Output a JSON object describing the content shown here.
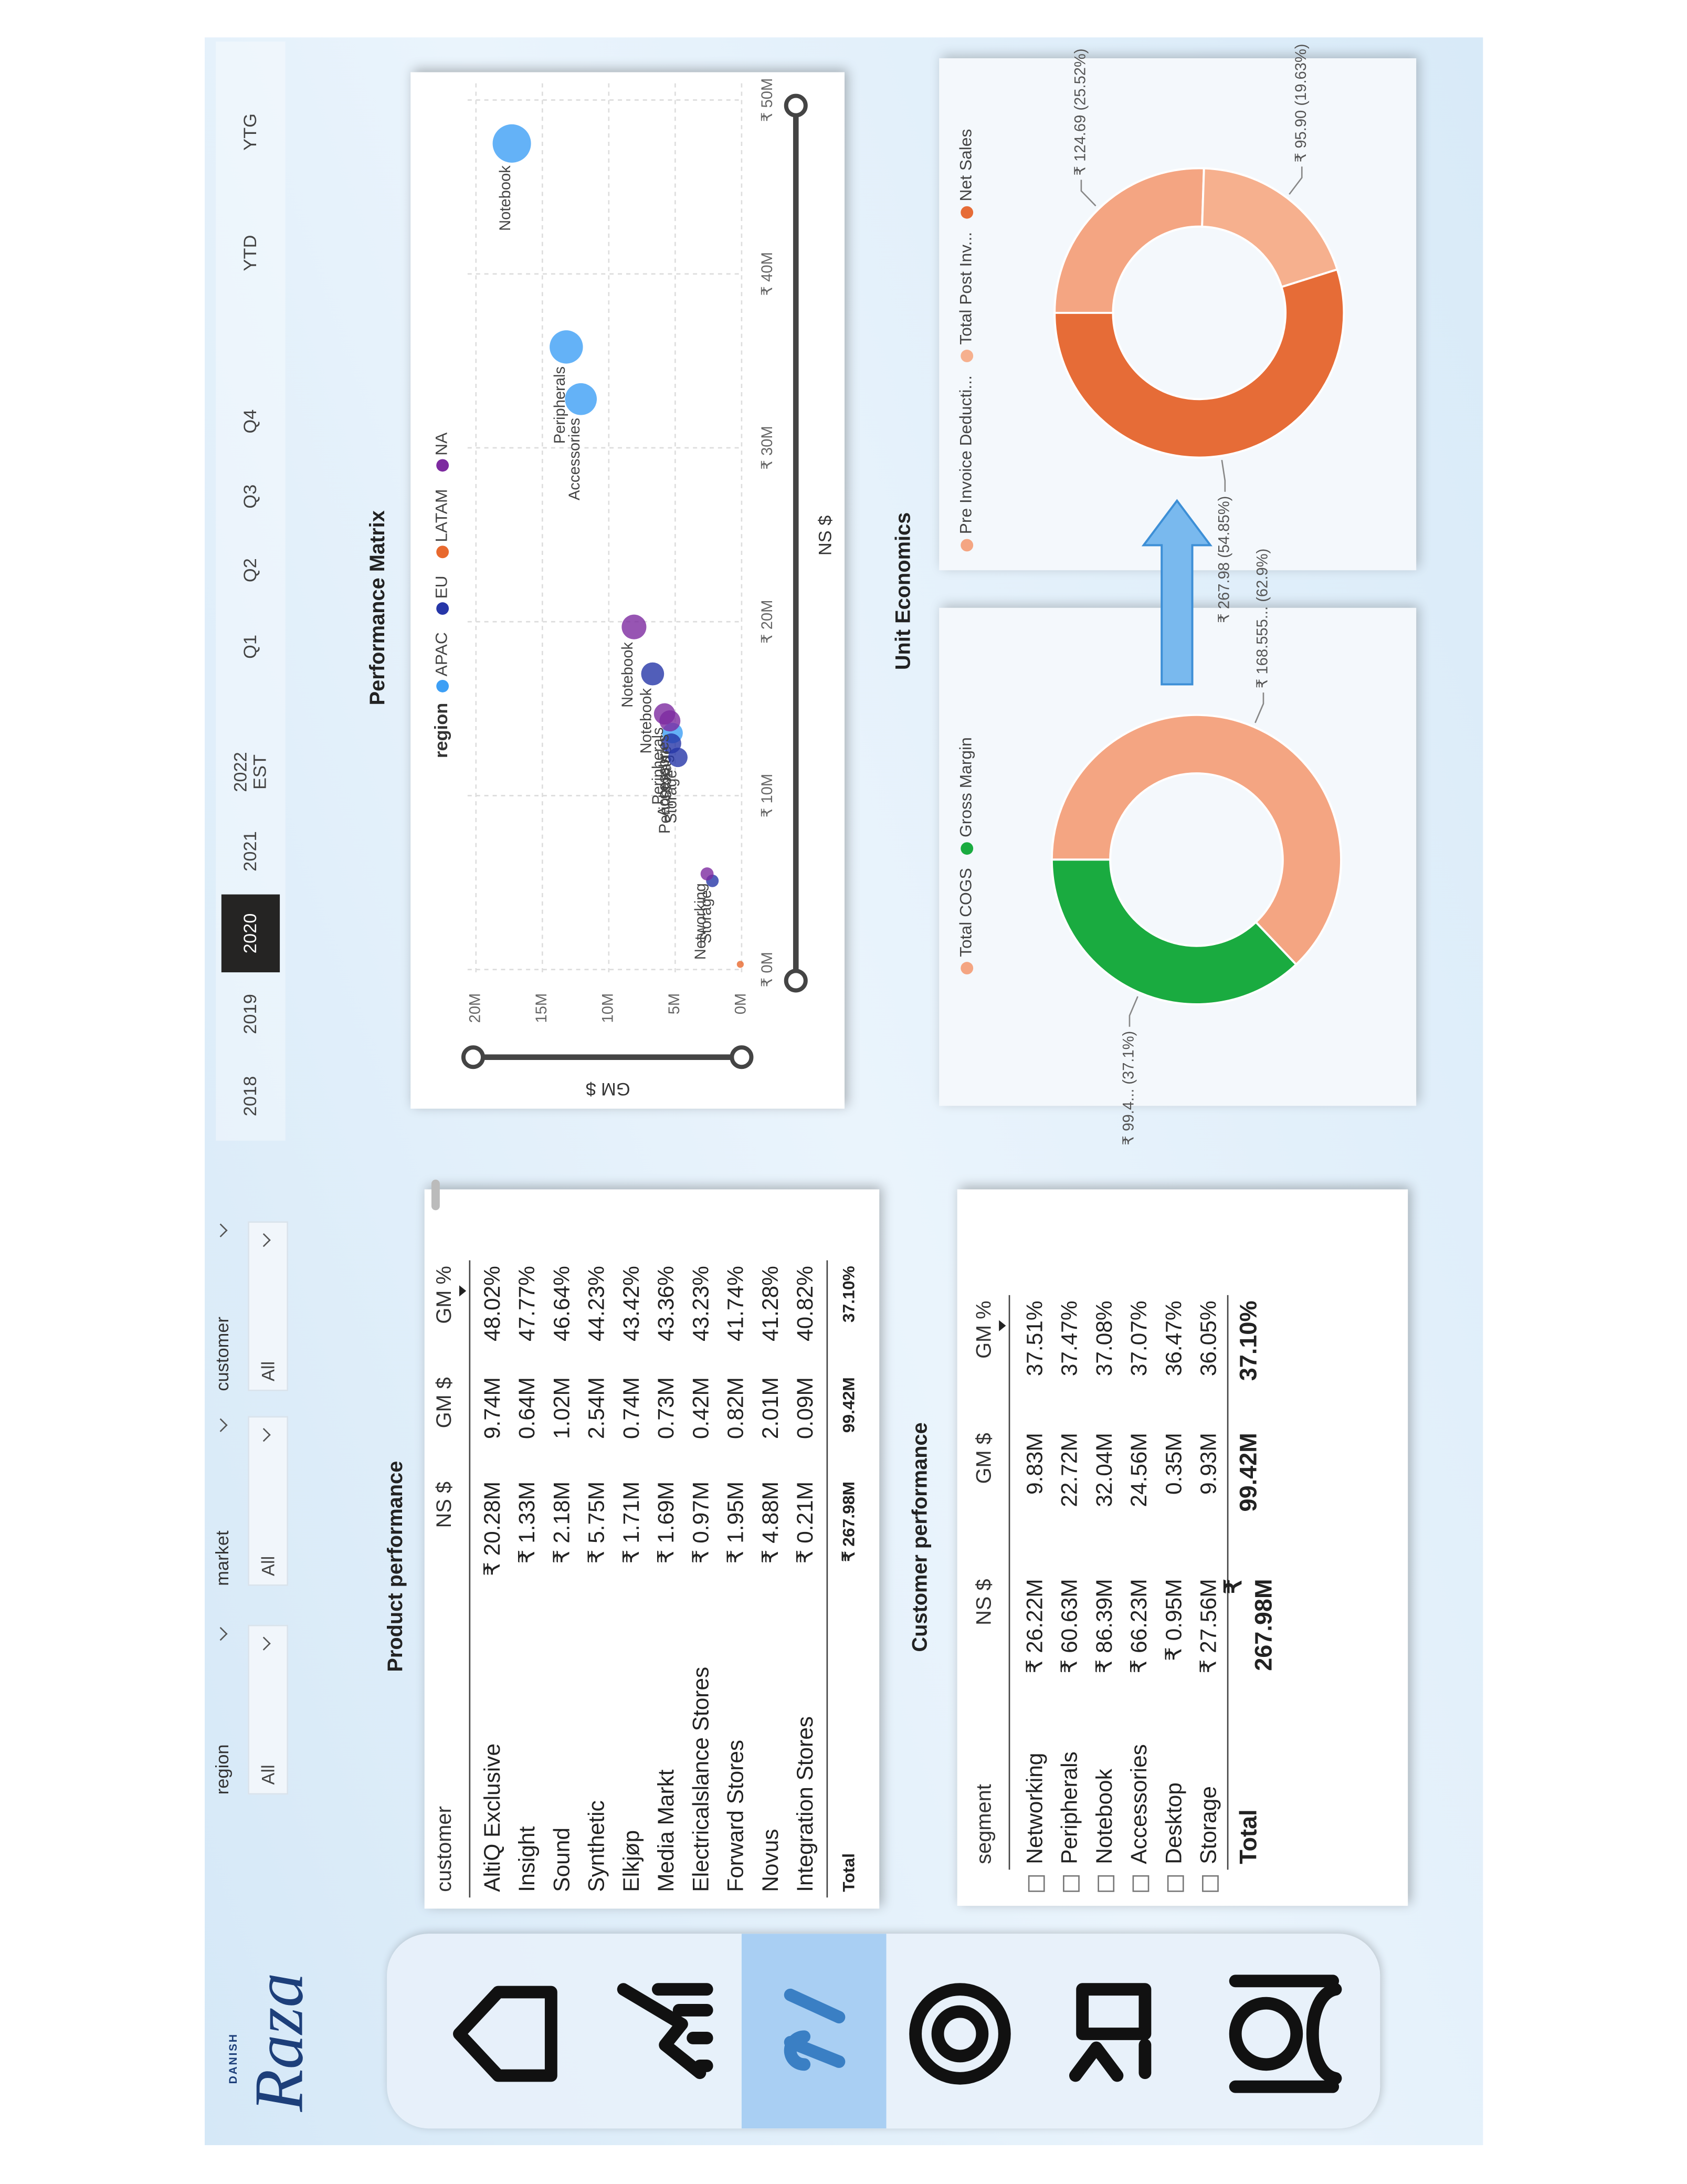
{
  "logo": {
    "small": "DANISH",
    "name": "Raza"
  },
  "filters": [
    {
      "label": "region",
      "value": "All"
    },
    {
      "label": "market",
      "value": "All"
    },
    {
      "label": "customer",
      "value": "All"
    }
  ],
  "periods": {
    "options": [
      "2018",
      "2019",
      "2020",
      "2021",
      "2022 EST",
      "Q1",
      "Q2",
      "Q3",
      "Q4",
      "YTD",
      "YTG"
    ],
    "selected_index": 2
  },
  "product_table": {
    "title": "Product performance",
    "columns": [
      "customer",
      "NS $",
      "GM $",
      "GM %"
    ],
    "rows": [
      [
        "AltiQ Exclusive",
        "₹ 20.28M",
        "9.74M",
        "48.02%"
      ],
      [
        "Insight",
        "₹ 1.33M",
        "0.64M",
        "47.77%"
      ],
      [
        "Sound",
        "₹ 2.18M",
        "1.02M",
        "46.64%"
      ],
      [
        "Synthetic",
        "₹ 5.75M",
        "2.54M",
        "44.23%"
      ],
      [
        "Elkjøp",
        "₹ 1.71M",
        "0.74M",
        "43.42%"
      ],
      [
        "Media Markt",
        "₹ 1.69M",
        "0.73M",
        "43.36%"
      ],
      [
        "Electricalslance Stores",
        "₹ 0.97M",
        "0.42M",
        "43.23%"
      ],
      [
        "Forward Stores",
        "₹ 1.95M",
        "0.82M",
        "41.74%"
      ],
      [
        "Novus",
        "₹ 4.88M",
        "2.01M",
        "41.28%"
      ],
      [
        "Integration Stores",
        "₹ 0.21M",
        "0.09M",
        "40.82%"
      ]
    ],
    "total": [
      "Total",
      "₹ 267.98M",
      "99.42M",
      "37.10%"
    ]
  },
  "customer_table": {
    "title": "Customer performance",
    "columns": [
      "segment",
      "NS $",
      "GM $",
      "GM %"
    ],
    "rows": [
      [
        "Networking",
        "₹ 26.22M",
        "9.83M",
        "37.51%"
      ],
      [
        "Peripherals",
        "₹ 60.63M",
        "22.72M",
        "37.47%"
      ],
      [
        "Notebook",
        "₹ 86.39M",
        "32.04M",
        "37.08%"
      ],
      [
        "Accessories",
        "₹ 66.23M",
        "24.56M",
        "37.07%"
      ],
      [
        "Desktop",
        "₹ 0.95M",
        "0.35M",
        "36.47%"
      ],
      [
        "Storage",
        "₹ 27.56M",
        "9.93M",
        "36.05%"
      ]
    ],
    "total": [
      "Total",
      "₹ 267.98M",
      "99.42M",
      "37.10%"
    ]
  },
  "unit_economics_title": "Unit Economics",
  "chart_data": [
    {
      "type": "scatter",
      "title": "Performance Matrix",
      "legend_title": "region",
      "x_label": "NS $",
      "y_label": "GM $",
      "grid": true,
      "xlim": [
        0,
        50
      ],
      "xticks": [
        {
          "value": 0,
          "label": "₹ 0M"
        },
        {
          "value": 10,
          "label": "₹ 10M"
        },
        {
          "value": 20,
          "label": "₹ 20M"
        },
        {
          "value": 30,
          "label": "₹ 30M"
        },
        {
          "value": 40,
          "label": "₹ 40M"
        },
        {
          "value": 50,
          "label": "₹ 50M"
        }
      ],
      "ylim": [
        0,
        20
      ],
      "yticks": [
        {
          "value": 0,
          "label": "0M"
        },
        {
          "value": 5,
          "label": "5M"
        },
        {
          "value": 10,
          "label": "10M"
        },
        {
          "value": 15,
          "label": "15M"
        },
        {
          "value": 20,
          "label": "20M"
        }
      ],
      "series": [
        {
          "name": "APAC",
          "color": "#3d9ff5",
          "x": [
            47.5,
            35.8,
            32.8,
            13.6
          ],
          "values": [
            17.3,
            13.2,
            12.1,
            5.2
          ],
          "labels": [
            "Notebook",
            "Peripherals",
            "Accessories",
            "Storage"
          ]
        },
        {
          "name": "EU",
          "color": "#2636a8",
          "x": [
            17.0,
            13.0,
            12.2,
            5.1
          ],
          "values": [
            6.7,
            5.3,
            4.8,
            2.2
          ],
          "labels": [
            "Notebook",
            "Peripherals",
            "Storage",
            "Storage"
          ]
        },
        {
          "name": "LATAM",
          "color": "#e8692e",
          "x": [
            0.3
          ],
          "values": [
            0.1
          ],
          "labels": [
            null
          ]
        },
        {
          "name": "NA",
          "color": "#7d2aa0",
          "x": [
            19.7,
            14.7,
            14.3,
            5.5
          ],
          "values": [
            8.1,
            5.8,
            5.4,
            2.6
          ],
          "labels": [
            "Notebook",
            "Peripherals",
            "Accessories",
            "Networking"
          ]
        }
      ]
    },
    {
      "type": "donut",
      "categories": [
        "Total COGS",
        "Gross Margin"
      ],
      "colors": [
        "#f4a582",
        "#1aab40"
      ],
      "values": [
        168.555,
        99.4
      ],
      "value_labels": [
        "₹ 168.555... (62.9%)",
        "₹ 99.4... (37.1%)"
      ]
    },
    {
      "type": "donut",
      "categories": [
        "Pre Invoice Deducti...",
        "Total Post Inv...",
        "Net Sales"
      ],
      "colors": [
        "#f4a582",
        "#f6b08e",
        "#e66c37"
      ],
      "values": [
        124.69,
        95.9,
        267.98
      ],
      "value_labels": [
        "₹ 124.69 (25.52%)",
        "₹ 95.90 (19.63%)",
        "₹ 267.98 (54.85%)"
      ]
    }
  ]
}
